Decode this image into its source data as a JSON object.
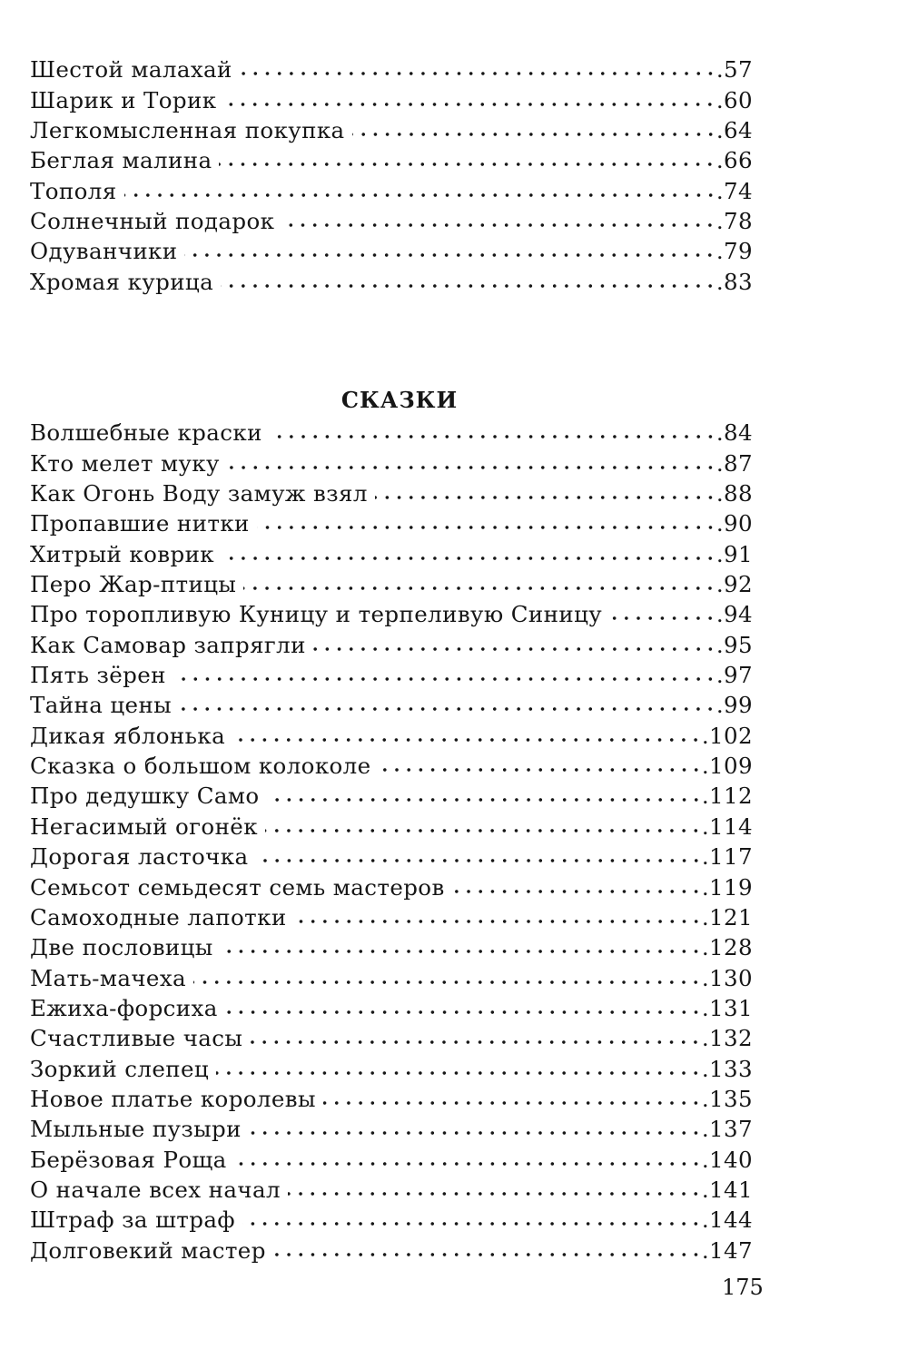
{
  "section1": {
    "items": [
      {
        "title": "Шестой малахай",
        "page": ".57"
      },
      {
        "title": "Шарик и Торик",
        "page": ".60"
      },
      {
        "title": "Легкомысленная покупка",
        "page": ".64"
      },
      {
        "title": "Беглая малина",
        "page": ".66"
      },
      {
        "title": "Тополя",
        "page": ".74"
      },
      {
        "title": "Солнечный подарок",
        "page": ".78"
      },
      {
        "title": "Одуванчики",
        "page": ".79"
      },
      {
        "title": "Хромая курица",
        "page": ".83"
      }
    ]
  },
  "section2": {
    "heading": "СКАЗКИ",
    "items": [
      {
        "title": "Волшебные краски",
        "page": ".84"
      },
      {
        "title": "Кто мелет муку",
        "page": ".87"
      },
      {
        "title": "Как Огонь Воду замуж взял",
        "page": ".88"
      },
      {
        "title": "Пропавшие нитки",
        "page": ".90"
      },
      {
        "title": "Хитрый коврик",
        "page": ".91"
      },
      {
        "title": "Перо Жар-птицы",
        "page": ".92"
      },
      {
        "title": "Про торопливую Куницу и терпеливую Синицу",
        "page": ".94"
      },
      {
        "title": "Как Самовар запрягли",
        "page": ".95"
      },
      {
        "title": "Пять зёрен",
        "page": ".97"
      },
      {
        "title": "Тайна цены",
        "page": ".99"
      },
      {
        "title": "Дикая яблонька",
        "page": ".102"
      },
      {
        "title": "Сказка о большом колоколе",
        "page": ".109"
      },
      {
        "title": "Про дедушку Само",
        "page": ".112"
      },
      {
        "title": "Негасимый огонёк",
        "page": ".114"
      },
      {
        "title": "Дорогая ласточка",
        "page": ".117"
      },
      {
        "title": "Семьсот семьдесят семь мастеров",
        "page": ".119"
      },
      {
        "title": "Самоходные лапотки",
        "page": ".121"
      },
      {
        "title": "Две пословицы",
        "page": ".128"
      },
      {
        "title": "Мать-мачеха",
        "page": ".130"
      },
      {
        "title": "Ежиха-форсиха",
        "page": ".131"
      },
      {
        "title": "Счастливые часы",
        "page": ".132"
      },
      {
        "title": "Зоркий слепец",
        "page": ".133"
      },
      {
        "title": "Новое платье королевы",
        "page": ".135"
      },
      {
        "title": "Мыльные пузыри",
        "page": ".137"
      },
      {
        "title": "Берёзовая Роща",
        "page": ".140"
      },
      {
        "title": "О начале всех начал",
        "page": ".141"
      },
      {
        "title": "Штраф за штраф",
        "page": ".144"
      },
      {
        "title": "Долговекий мастер",
        "page": ".147"
      }
    ]
  },
  "folio": "175"
}
